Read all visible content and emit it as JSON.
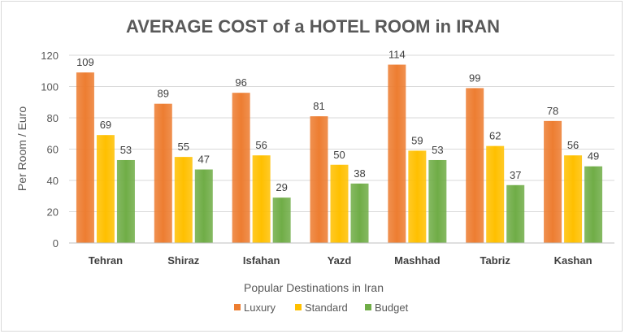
{
  "chart_data": {
    "type": "bar",
    "title": "AVERAGE COST of a HOTEL ROOM in IRAN",
    "xlabel": "Popular Destinations in Iran",
    "ylabel": "Per Room / Euro",
    "ylim": [
      0,
      120
    ],
    "yticks": [
      0,
      20,
      40,
      60,
      80,
      100,
      120
    ],
    "grid": true,
    "legend_position": "bottom",
    "categories": [
      "Tehran",
      "Shiraz",
      "Isfahan",
      "Yazd",
      "Mashhad",
      "Tabriz",
      "Kashan"
    ],
    "series": [
      {
        "name": "Luxury",
        "color": "#ED7D31",
        "values": [
          109,
          89,
          96,
          81,
          114,
          99,
          78
        ]
      },
      {
        "name": "Standard",
        "color": "#FFC000",
        "values": [
          69,
          55,
          56,
          50,
          59,
          62,
          56
        ]
      },
      {
        "name": "Budget",
        "color": "#70AD47",
        "values": [
          53,
          47,
          29,
          38,
          53,
          37,
          49
        ]
      }
    ]
  }
}
